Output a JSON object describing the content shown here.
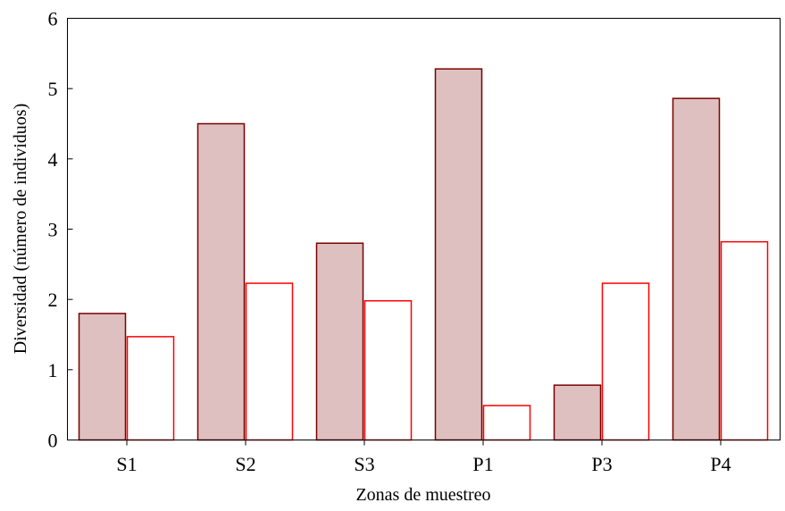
{
  "chart_data": {
    "type": "bar",
    "title": "",
    "xlabel": "Zonas de muestreo",
    "ylabel": "Diversidad (número de individuos)",
    "ylim": [
      0,
      6
    ],
    "yticks": [
      0,
      1,
      2,
      3,
      4,
      5,
      6
    ],
    "categories": [
      "S1",
      "S2",
      "S3",
      "P1",
      "P3",
      "P4"
    ],
    "grid": false,
    "legend": "none",
    "series": [
      {
        "values": [
          1.8,
          4.5,
          2.8,
          5.28,
          0.78,
          4.86
        ],
        "fill": "#dfc0c0",
        "stroke": "#7a0000"
      },
      {
        "values": [
          1.47,
          2.23,
          1.98,
          0.49,
          2.23,
          2.82
        ],
        "fill": "#ffffff",
        "stroke": "#ff0000"
      }
    ]
  }
}
